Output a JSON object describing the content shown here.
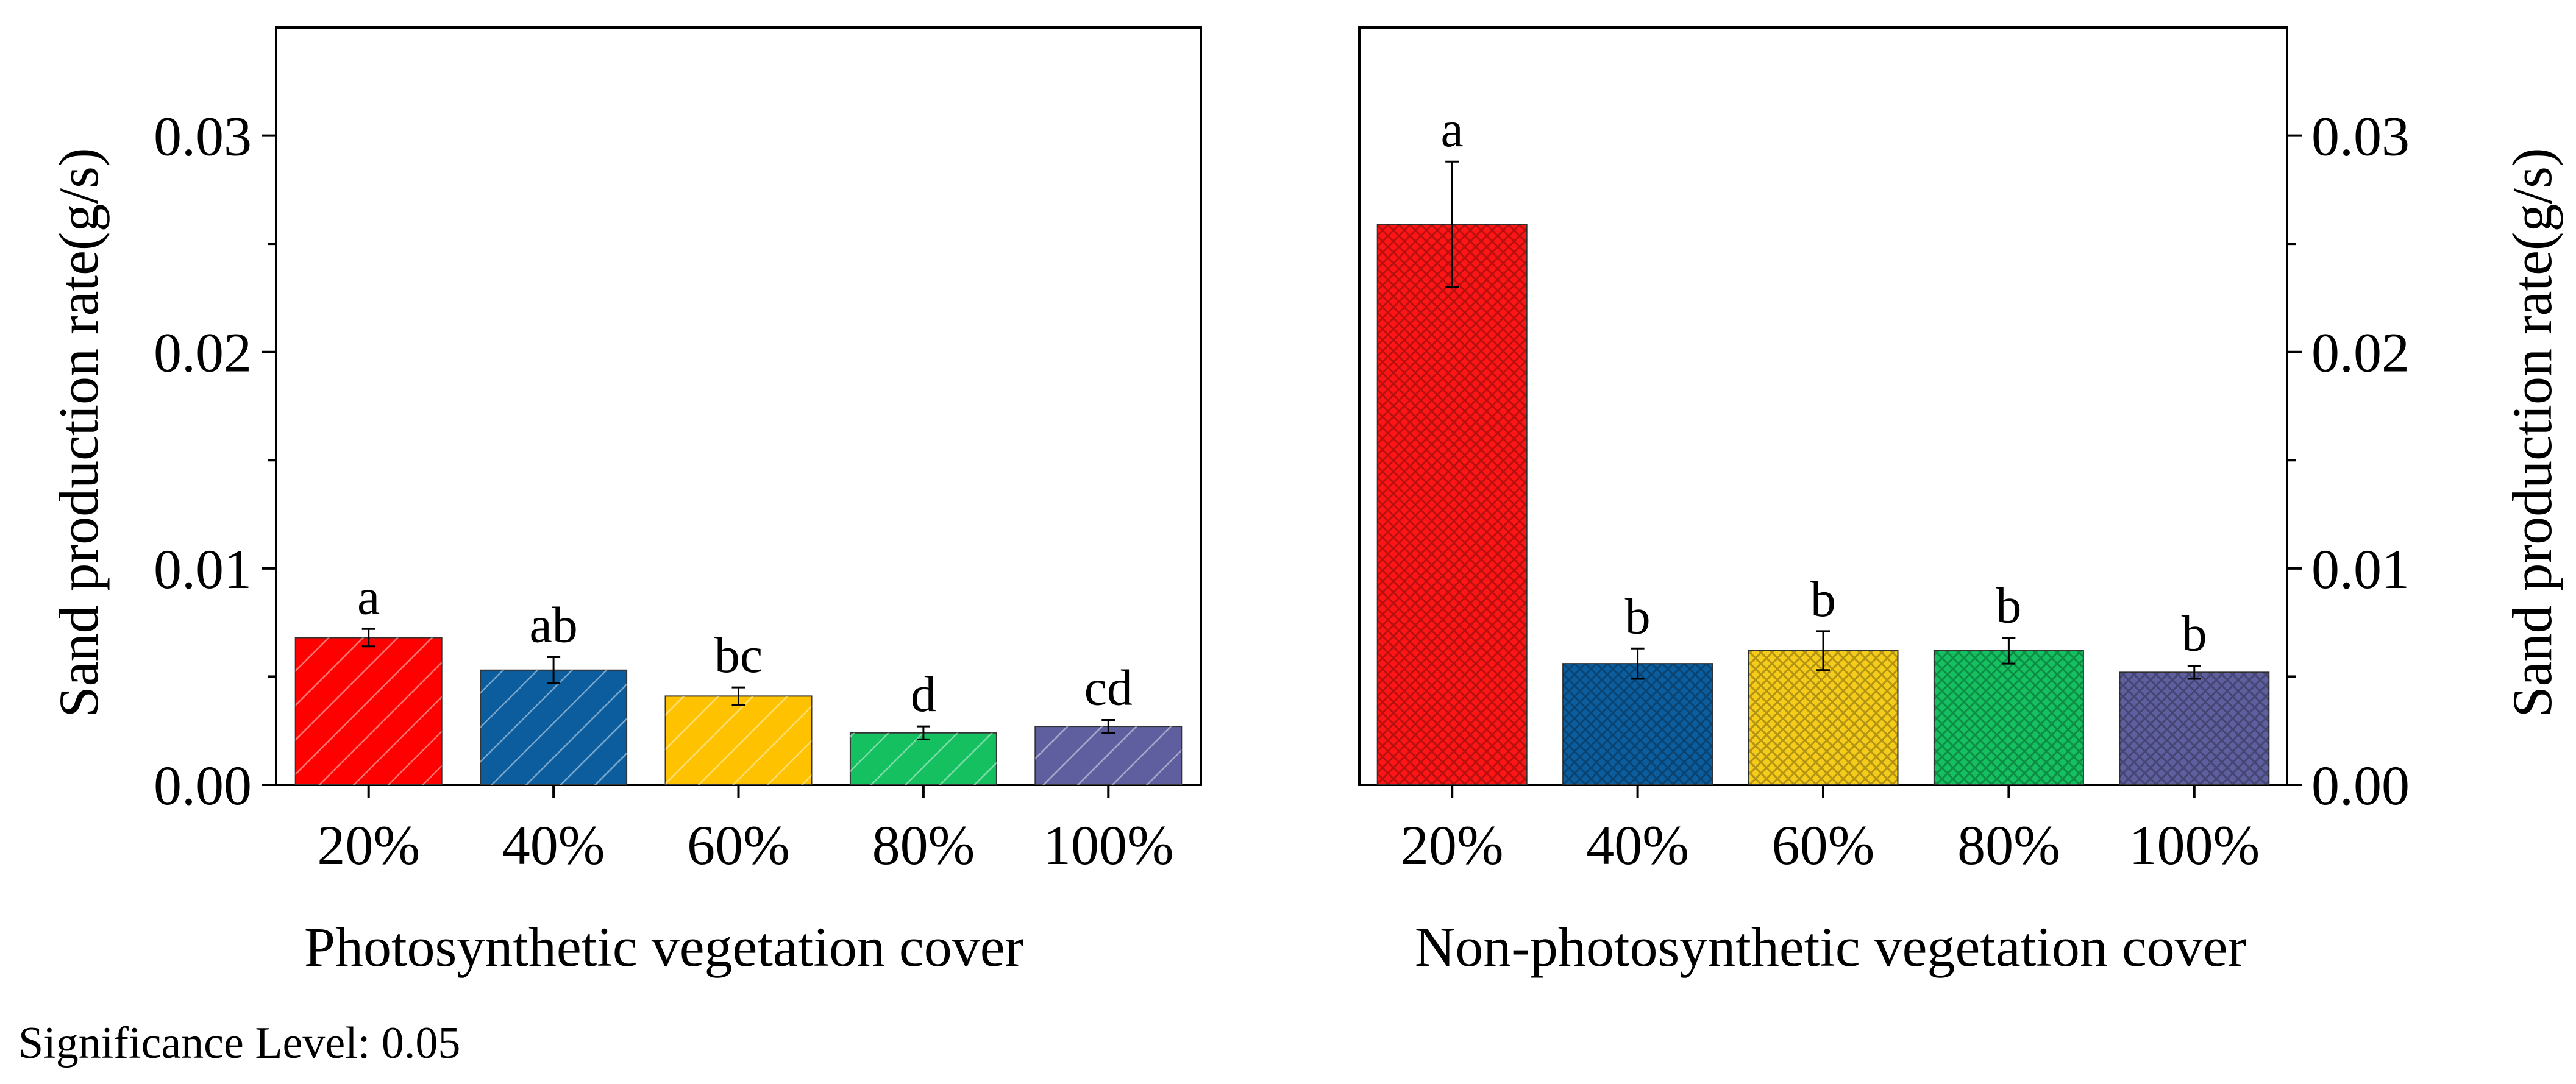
{
  "footer": {
    "significance": "Significance Level: 0.05"
  },
  "chart_data": [
    {
      "type": "bar",
      "title": "",
      "xlabel": "Photosynthetic vegetation cover",
      "ylabel": "Sand production rate(g/s)",
      "categories": [
        "20%",
        "40%",
        "60%",
        "80%",
        "100%"
      ],
      "values": [
        0.0068,
        0.0053,
        0.0041,
        0.0024,
        0.0027
      ],
      "errors": [
        0.0004,
        0.0006,
        0.0004,
        0.0003,
        0.0003
      ],
      "significance_letters": [
        "a",
        "ab",
        "bc",
        "d",
        "cd"
      ],
      "colors": [
        "#ff0000",
        "#0b5d9e",
        "#ffc200",
        "#14c060",
        "#5f5f9f"
      ],
      "pattern": "diagonal-hatch",
      "ylim": [
        0,
        0.035
      ],
      "yticks": [
        0.0,
        0.01,
        0.02,
        0.03
      ],
      "ytick_labels": [
        "0.00",
        "0.01",
        "0.02",
        "0.03"
      ],
      "y_axis_side": "left",
      "grid": false,
      "legend": "none"
    },
    {
      "type": "bar",
      "title": "",
      "xlabel": "Non-photosynthetic vegetation cover",
      "ylabel": "Sand production rate(g/s)",
      "categories": [
        "20%",
        "40%",
        "60%",
        "80%",
        "100%"
      ],
      "values": [
        0.0259,
        0.0056,
        0.0062,
        0.0062,
        0.0052
      ],
      "errors": [
        0.0029,
        0.0007,
        0.0009,
        0.0006,
        0.0003
      ],
      "significance_letters": [
        "a",
        "b",
        "b",
        "b",
        "b"
      ],
      "colors": [
        "#ff1515",
        "#0b5d9e",
        "#f6cc1a",
        "#14c060",
        "#5f5f9f"
      ],
      "pattern": "crosshatch",
      "ylim": [
        0,
        0.035
      ],
      "yticks": [
        0.0,
        0.01,
        0.02,
        0.03
      ],
      "ytick_labels": [
        "0.00",
        "0.01",
        "0.02",
        "0.03"
      ],
      "y_axis_side": "right",
      "grid": false,
      "legend": "none"
    }
  ]
}
